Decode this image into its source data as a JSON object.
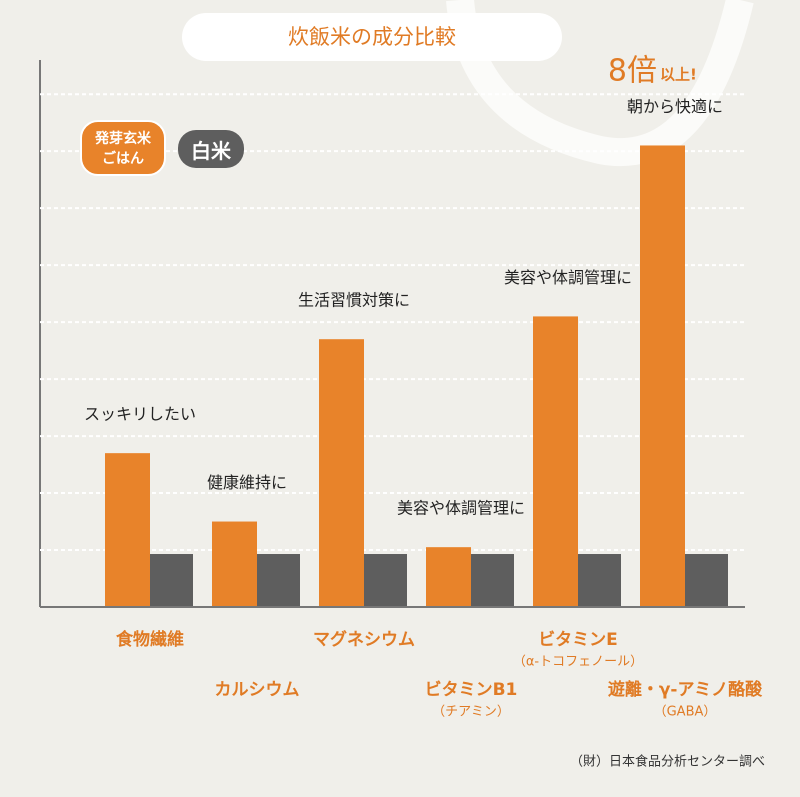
{
  "chart_data": {
    "type": "bar",
    "title": "炊飯米の成分比較",
    "categories": [
      "食物繊維",
      "カルシウム",
      "マグネシウム",
      "ビタミンB1",
      "ビタミンE",
      "遊離・γ-アミノ酪酸"
    ],
    "category_sublabels": [
      null,
      null,
      null,
      "（チアミン）",
      "（α-トコフェノール）",
      "（GABA）"
    ],
    "annotations": [
      "スッキリしたい",
      "健康維持に",
      "生活習慣対策に",
      "美容や体調管理に",
      "美容や体調管理に",
      "朝から快適に"
    ],
    "series": [
      {
        "name": "発芽玄米\nごはん",
        "color": "#e8832a",
        "values": [
          2.7,
          1.5,
          4.7,
          1.05,
          5.1,
          8.1
        ]
      },
      {
        "name": "白米",
        "color": "#5e5e5e",
        "values": [
          0.93,
          0.93,
          0.93,
          0.93,
          0.93,
          0.93
        ]
      }
    ],
    "ylim": [
      0,
      9.6
    ],
    "yticks": [
      1,
      2,
      3,
      4,
      5,
      6,
      7,
      8,
      9
    ],
    "grid": true,
    "callout": {
      "main": "8倍",
      "suffix": "以上!"
    },
    "source": "（財）日本食品分析センター調べ"
  }
}
